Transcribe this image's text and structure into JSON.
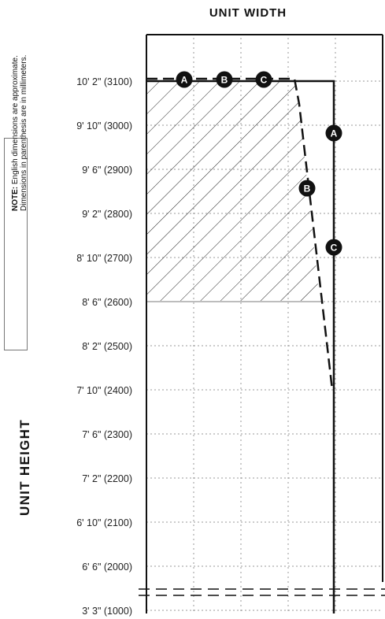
{
  "labels": {
    "title_top": "UNIT WIDTH",
    "title_left": "UNIT HEIGHT",
    "note_bold": "NOTE:",
    "note_line1": " English dimensions are approximate.",
    "note_line2": "Dimensions in parenthesis are in millimeters."
  },
  "y_ticks": [
    "10' 2\" (3100)",
    "9' 10\" (3000)",
    "9' 6\" (2900)",
    "9' 2\" (2800)",
    "8' 10\" (2700)",
    "8' 6\" (2600)",
    "8' 2\" (2500)",
    "7' 10\" (2400)",
    "7' 6\" (2300)",
    "7' 2\" (2200)",
    "6' 10\" (2100)",
    "6' 6\" (2000)",
    "3' 3\" (1000)"
  ],
  "markers": {
    "top": [
      "A",
      "B",
      "C"
    ],
    "right": [
      "A",
      "B",
      "C"
    ]
  },
  "colors": {
    "line": "#111111",
    "grid": "#999999",
    "marker_fill": "#111111",
    "marker_text": "#ffffff",
    "hatch": "#222222"
  }
}
